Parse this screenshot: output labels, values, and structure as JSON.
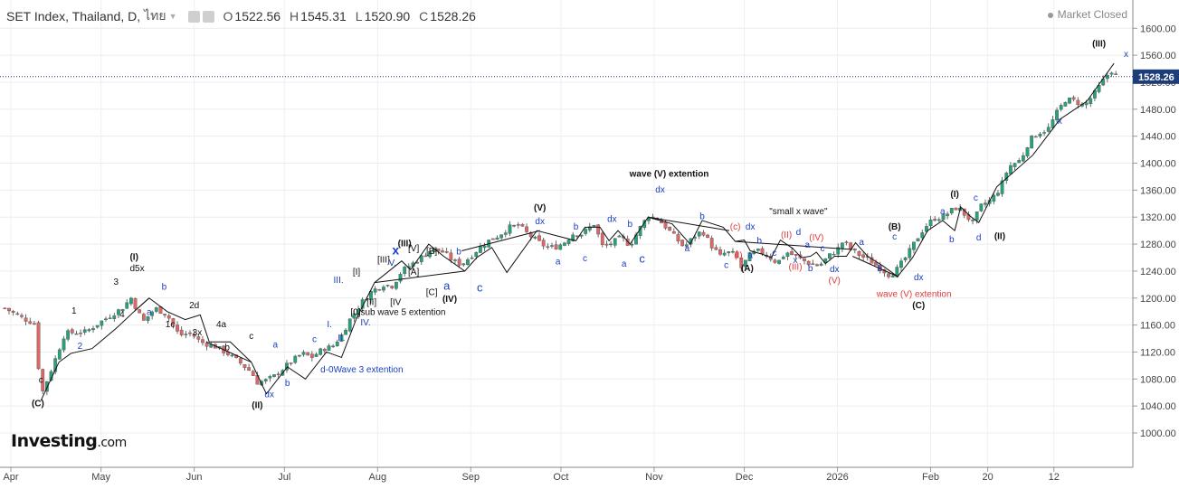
{
  "header": {
    "symbol": "SET Index, Thailand, D,",
    "language": "ไทย",
    "open_label": "O",
    "open": "1522.56",
    "high_label": "H",
    "high": "1545.31",
    "low_label": "L",
    "low": "1520.90",
    "close_label": "C",
    "close": "1528.26",
    "status": "Market Closed"
  },
  "logo": {
    "main": "Investing",
    "suffix": ".com"
  },
  "colors": {
    "up": "#26a17b",
    "down": "#e06666",
    "wave_blue": "#1a3fc4",
    "wave_red": "#e23b3b",
    "last_price_bg": "#1d3c7a"
  },
  "chart_data": {
    "type": "candlestick",
    "ylim": [
      960,
      1620
    ],
    "y_ticks": [
      1000,
      1040,
      1080,
      1120,
      1160,
      1200,
      1240,
      1280,
      1320,
      1360,
      1400,
      1440,
      1480,
      1520,
      1560,
      1600
    ],
    "x_months": [
      {
        "label": "Apr",
        "day": 0
      },
      {
        "label": "May",
        "day": 30
      },
      {
        "label": "Jun",
        "day": 61
      },
      {
        "label": "Jul",
        "day": 91
      },
      {
        "label": "Aug",
        "day": 122
      },
      {
        "label": "Sep",
        "day": 153
      },
      {
        "label": "Oct",
        "day": 183
      },
      {
        "label": "Nov",
        "day": 214
      },
      {
        "label": "Dec",
        "day": 244
      },
      {
        "label": "2026",
        "day": 275
      },
      {
        "label": "Feb",
        "day": 306
      },
      {
        "label": "20",
        "day": 325
      },
      {
        "label": "12",
        "day": 347
      }
    ],
    "last_price": "1528.26",
    "path": [
      [
        -2,
        1185
      ],
      [
        4,
        1170
      ],
      [
        8,
        1162
      ],
      [
        10,
        1055
      ],
      [
        14,
        1100
      ],
      [
        18,
        1148
      ],
      [
        25,
        1150
      ],
      [
        30,
        1165
      ],
      [
        37,
        1185
      ],
      [
        40,
        1200
      ],
      [
        44,
        1165
      ],
      [
        48,
        1185
      ],
      [
        52,
        1175
      ],
      [
        56,
        1145
      ],
      [
        60,
        1148
      ],
      [
        63,
        1135
      ],
      [
        68,
        1128
      ],
      [
        72,
        1118
      ],
      [
        76,
        1105
      ],
      [
        80,
        1090
      ],
      [
        82,
        1075
      ],
      [
        85,
        1078
      ],
      [
        88,
        1085
      ],
      [
        93,
        1105
      ],
      [
        97,
        1118
      ],
      [
        100,
        1112
      ],
      [
        104,
        1125
      ],
      [
        107,
        1128
      ],
      [
        110,
        1145
      ],
      [
        113,
        1170
      ],
      [
        117,
        1195
      ],
      [
        120,
        1210
      ],
      [
        124,
        1220
      ],
      [
        127,
        1218
      ],
      [
        130,
        1240
      ],
      [
        134,
        1252
      ],
      [
        137,
        1262
      ],
      [
        140,
        1272
      ],
      [
        144,
        1268
      ],
      [
        147,
        1255
      ],
      [
        150,
        1250
      ],
      [
        153,
        1262
      ],
      [
        156,
        1275
      ],
      [
        159,
        1285
      ],
      [
        162,
        1292
      ],
      [
        166,
        1305
      ],
      [
        169,
        1308
      ],
      [
        172,
        1295
      ],
      [
        175,
        1285
      ],
      [
        178,
        1276
      ],
      [
        181,
        1275
      ],
      [
        184,
        1282
      ],
      [
        187,
        1295
      ],
      [
        190,
        1295
      ],
      [
        194,
        1310
      ],
      [
        197,
        1275
      ],
      [
        200,
        1282
      ],
      [
        203,
        1290
      ],
      [
        206,
        1278
      ],
      [
        209,
        1302
      ],
      [
        212,
        1322
      ],
      [
        215,
        1318
      ],
      [
        218,
        1305
      ],
      [
        221,
        1290
      ],
      [
        224,
        1275
      ],
      [
        227,
        1290
      ],
      [
        230,
        1300
      ],
      [
        233,
        1278
      ],
      [
        236,
        1262
      ],
      [
        238,
        1268
      ],
      [
        241,
        1265
      ],
      [
        243,
        1245
      ],
      [
        246,
        1265
      ],
      [
        249,
        1270
      ],
      [
        252,
        1262
      ],
      [
        255,
        1252
      ],
      [
        258,
        1268
      ],
      [
        261,
        1262
      ],
      [
        264,
        1255
      ],
      [
        266,
        1250
      ],
      [
        269,
        1248
      ],
      [
        272,
        1262
      ],
      [
        275,
        1272
      ],
      [
        277,
        1285
      ],
      [
        280,
        1270
      ],
      [
        283,
        1262
      ],
      [
        286,
        1255
      ],
      [
        289,
        1245
      ],
      [
        292,
        1235
      ],
      [
        294,
        1238
      ],
      [
        298,
        1262
      ],
      [
        301,
        1285
      ],
      [
        304,
        1305
      ],
      [
        307,
        1318
      ],
      [
        310,
        1320
      ],
      [
        313,
        1330
      ],
      [
        315,
        1335
      ],
      [
        317,
        1325
      ],
      [
        320,
        1312
      ],
      [
        323,
        1338
      ],
      [
        326,
        1345
      ],
      [
        329,
        1362
      ],
      [
        332,
        1395
      ],
      [
        336,
        1405
      ],
      [
        339,
        1435
      ],
      [
        342,
        1445
      ],
      [
        345,
        1450
      ],
      [
        348,
        1475
      ],
      [
        351,
        1495
      ],
      [
        354,
        1492
      ],
      [
        357,
        1485
      ],
      [
        360,
        1500
      ],
      [
        363,
        1520
      ],
      [
        366,
        1538
      ],
      [
        368,
        1528
      ]
    ],
    "wave_lines": [
      [
        [
          10,
          1048
        ],
        [
          16,
          1105
        ],
        [
          20,
          1118
        ],
        [
          27,
          1125
        ],
        [
          35,
          1155
        ],
        [
          41,
          1180
        ],
        [
          46,
          1200
        ],
        [
          52,
          1180
        ],
        [
          58,
          1168
        ],
        [
          63,
          1175
        ],
        [
          66,
          1135
        ],
        [
          73,
          1135
        ],
        [
          80,
          1105
        ],
        [
          85,
          1058
        ],
        [
          92,
          1098
        ],
        [
          98,
          1080
        ],
        [
          105,
          1120
        ],
        [
          110,
          1112
        ],
        [
          115,
          1170
        ],
        [
          121,
          1223
        ],
        [
          130,
          1255
        ],
        [
          133,
          1242
        ],
        [
          139,
          1280
        ],
        [
          144,
          1262
        ],
        [
          151,
          1240
        ],
        [
          155,
          1260
        ],
        [
          160,
          1275
        ],
        [
          165,
          1238
        ],
        [
          175,
          1300
        ],
        [
          188,
          1285
        ],
        [
          191,
          1305
        ],
        [
          196,
          1305
        ],
        [
          199,
          1285
        ],
        [
          202,
          1300
        ],
        [
          206,
          1280
        ],
        [
          212,
          1320
        ],
        [
          220,
          1310
        ],
        [
          226,
          1280
        ],
        [
          230,
          1315
        ],
        [
          237,
          1305
        ],
        [
          241,
          1284
        ],
        [
          244,
          1286
        ],
        [
          246,
          1270
        ],
        [
          250,
          1265
        ],
        [
          253,
          1260
        ],
        [
          256,
          1286
        ],
        [
          260,
          1274
        ],
        [
          263,
          1260
        ],
        [
          266,
          1262
        ],
        [
          268,
          1268
        ],
        [
          271,
          1251
        ],
        [
          274,
          1262
        ],
        [
          278,
          1262
        ],
        [
          281,
          1282
        ],
        [
          285,
          1262
        ],
        [
          290,
          1248
        ],
        [
          295,
          1232
        ],
        [
          300,
          1260
        ],
        [
          305,
          1300
        ],
        [
          310,
          1315
        ],
        [
          314,
          1300
        ],
        [
          316,
          1335
        ],
        [
          319,
          1322
        ],
        [
          322,
          1312
        ],
        [
          328,
          1365
        ],
        [
          340,
          1412
        ],
        [
          349,
          1465
        ],
        [
          358,
          1492
        ],
        [
          367,
          1548
        ]
      ],
      [
        [
          41,
          1180
        ],
        [
          46,
          1200
        ]
      ],
      [
        [
          65,
          1135
        ],
        [
          80,
          1105
        ]
      ],
      [
        [
          121,
          1223
        ],
        [
          151,
          1240
        ]
      ],
      [
        [
          150,
          1270
        ],
        [
          176,
          1300
        ]
      ],
      [
        [
          212,
          1320
        ],
        [
          239,
          1300
        ]
      ],
      [
        [
          241,
          1284
        ],
        [
          280,
          1272
        ]
      ],
      [
        [
          280,
          1262
        ],
        [
          295,
          1232
        ]
      ]
    ],
    "labels": [
      {
        "t": "(C)",
        "day": 9,
        "v": 1045,
        "c": "k",
        "b": true
      },
      {
        "t": "c",
        "day": 10,
        "v": 1080,
        "c": "k"
      },
      {
        "t": "1",
        "day": 21,
        "v": 1182,
        "c": "k"
      },
      {
        "t": "2",
        "day": 23,
        "v": 1130,
        "c": "b"
      },
      {
        "t": "3",
        "day": 35,
        "v": 1225,
        "c": "k"
      },
      {
        "t": "4",
        "day": 37,
        "v": 1177,
        "c": "k"
      },
      {
        "t": "(I)",
        "day": 41,
        "v": 1262,
        "c": "k",
        "b": true
      },
      {
        "t": "d5x",
        "day": 42,
        "v": 1245,
        "c": "k"
      },
      {
        "t": "b",
        "day": 51,
        "v": 1218,
        "c": "b"
      },
      {
        "t": "a",
        "day": 46,
        "v": 1180,
        "c": "b"
      },
      {
        "t": "1c",
        "day": 53,
        "v": 1162,
        "c": "k"
      },
      {
        "t": "2d",
        "day": 61,
        "v": 1190,
        "c": "k"
      },
      {
        "t": "3x",
        "day": 62,
        "v": 1150,
        "c": "k"
      },
      {
        "t": "4a",
        "day": 70,
        "v": 1162,
        "c": "k"
      },
      {
        "t": "b",
        "day": 72,
        "v": 1128,
        "c": "k"
      },
      {
        "t": "c",
        "day": 80,
        "v": 1145,
        "c": "k"
      },
      {
        "t": "dx",
        "day": 86,
        "v": 1058,
        "c": "b"
      },
      {
        "t": "(II)",
        "day": 82,
        "v": 1042,
        "c": "k",
        "b": true
      },
      {
        "t": "a",
        "day": 88,
        "v": 1132,
        "c": "b"
      },
      {
        "t": "b",
        "day": 92,
        "v": 1075,
        "c": "b"
      },
      {
        "t": "c",
        "day": 101,
        "v": 1140,
        "c": "b"
      },
      {
        "t": "d-0Wave 3 extention",
        "day": 103,
        "v": 1095,
        "c": "b",
        "a": "start"
      },
      {
        "t": "I.",
        "day": 106,
        "v": 1162,
        "c": "b"
      },
      {
        "t": "II.",
        "day": 110,
        "v": 1142,
        "c": "b"
      },
      {
        "t": "III.",
        "day": 109,
        "v": 1228,
        "c": "b"
      },
      {
        "t": "IV.",
        "day": 118,
        "v": 1165,
        "c": "b"
      },
      {
        "t": "[I]",
        "day": 115,
        "v": 1240,
        "c": "k"
      },
      {
        "t": "[II]",
        "day": 120,
        "v": 1195,
        "c": "k"
      },
      {
        "t": "[III]",
        "day": 124,
        "v": 1258,
        "c": "k"
      },
      {
        "t": "[IV",
        "day": 128,
        "v": 1195,
        "c": "k"
      },
      {
        "t": "[0]sub wave 5 extention",
        "day": 113,
        "v": 1180,
        "c": "k",
        "a": "start"
      },
      {
        "t": "x",
        "day": 128,
        "v": 1270,
        "c": "b",
        "b": true,
        "s": 14
      },
      {
        "t": "V.",
        "day": 127,
        "v": 1253,
        "c": "b"
      },
      {
        "t": "(III)",
        "day": 131,
        "v": 1282,
        "c": "k",
        "b": true
      },
      {
        "t": "[V]",
        "day": 134,
        "v": 1275,
        "c": "k"
      },
      {
        "t": "[A]",
        "day": 134,
        "v": 1240,
        "c": "k"
      },
      {
        "t": "[B]",
        "day": 140,
        "v": 1271,
        "c": "k"
      },
      {
        "t": "[C]",
        "day": 140,
        "v": 1210,
        "c": "k"
      },
      {
        "t": "a",
        "day": 145,
        "v": 1218,
        "c": "b",
        "s": 13
      },
      {
        "t": "(IV)",
        "day": 146,
        "v": 1200,
        "c": "k",
        "b": true
      },
      {
        "t": "b",
        "day": 149,
        "v": 1270,
        "c": "b"
      },
      {
        "t": "c",
        "day": 156,
        "v": 1215,
        "c": "b",
        "s": 13
      },
      {
        "t": "(V)",
        "day": 176,
        "v": 1335,
        "c": "k",
        "b": true
      },
      {
        "t": "dx",
        "day": 176,
        "v": 1315,
        "c": "b"
      },
      {
        "t": "b",
        "day": 188,
        "v": 1307,
        "c": "b"
      },
      {
        "t": "a",
        "day": 182,
        "v": 1255,
        "c": "b"
      },
      {
        "t": "c",
        "day": 191,
        "v": 1260,
        "c": "b"
      },
      {
        "t": "dx",
        "day": 200,
        "v": 1318,
        "c": "b"
      },
      {
        "t": "b",
        "day": 206,
        "v": 1311,
        "c": "b"
      },
      {
        "t": "a",
        "day": 204,
        "v": 1252,
        "c": "b"
      },
      {
        "t": "c",
        "day": 210,
        "v": 1258,
        "c": "b",
        "s": 13
      },
      {
        "t": "wave (V) extention",
        "day": 219,
        "v": 1385,
        "c": "k",
        "b": true
      },
      {
        "t": "dx",
        "day": 216,
        "v": 1362,
        "c": "b"
      },
      {
        "t": "b",
        "day": 230,
        "v": 1322,
        "c": "b"
      },
      {
        "t": "a",
        "day": 225,
        "v": 1275,
        "c": "b"
      },
      {
        "t": "c",
        "day": 238,
        "v": 1250,
        "c": "b"
      },
      {
        "t": "(c)",
        "day": 241,
        "v": 1307,
        "c": "r"
      },
      {
        "t": "dx",
        "day": 246,
        "v": 1307,
        "c": "b"
      },
      {
        "t": "(I)",
        "day": 242,
        "v": 1265,
        "c": "r"
      },
      {
        "t": "a",
        "day": 246,
        "v": 1265,
        "c": "b"
      },
      {
        "t": "(A)",
        "day": 245,
        "v": 1245,
        "c": "k",
        "b": true
      },
      {
        "t": "\"small x wave\"",
        "day": 262,
        "v": 1330,
        "c": "k"
      },
      {
        "t": "b",
        "day": 249,
        "v": 1286,
        "c": "b"
      },
      {
        "t": "c",
        "day": 254,
        "v": 1268,
        "c": "b"
      },
      {
        "t": "(II)",
        "day": 258,
        "v": 1295,
        "c": "r"
      },
      {
        "t": "d",
        "day": 262,
        "v": 1299,
        "c": "b"
      },
      {
        "t": "(IV)",
        "day": 268,
        "v": 1291,
        "c": "r"
      },
      {
        "t": "a",
        "day": 265,
        "v": 1280,
        "c": "b"
      },
      {
        "t": "c",
        "day": 270,
        "v": 1275,
        "c": "b"
      },
      {
        "t": "x",
        "day": 261,
        "v": 1257,
        "c": "b"
      },
      {
        "t": "(III)",
        "day": 261,
        "v": 1247,
        "c": "r"
      },
      {
        "t": "b",
        "day": 266,
        "v": 1245,
        "c": "b"
      },
      {
        "t": "dx",
        "day": 274,
        "v": 1244,
        "c": "b"
      },
      {
        "t": "(V)",
        "day": 274,
        "v": 1227,
        "c": "r"
      },
      {
        "t": "a",
        "day": 283,
        "v": 1284,
        "c": "b"
      },
      {
        "t": "b",
        "day": 289,
        "v": 1245,
        "c": "b"
      },
      {
        "t": "(B)",
        "day": 294,
        "v": 1307,
        "c": "k",
        "b": true
      },
      {
        "t": "c",
        "day": 294,
        "v": 1292,
        "c": "b"
      },
      {
        "t": "wave (V) extention",
        "day": 288,
        "v": 1207,
        "c": "r",
        "a": "start"
      },
      {
        "t": "dx",
        "day": 302,
        "v": 1232,
        "c": "b"
      },
      {
        "t": "(C)",
        "day": 302,
        "v": 1190,
        "c": "k",
        "b": true
      },
      {
        "t": "(I)",
        "day": 314,
        "v": 1355,
        "c": "k",
        "b": true
      },
      {
        "t": "a",
        "day": 310,
        "v": 1330,
        "c": "b"
      },
      {
        "t": "c",
        "day": 321,
        "v": 1350,
        "c": "b"
      },
      {
        "t": "b",
        "day": 313,
        "v": 1288,
        "c": "b"
      },
      {
        "t": "d",
        "day": 322,
        "v": 1291,
        "c": "b"
      },
      {
        "t": "(II)",
        "day": 329,
        "v": 1293,
        "c": "k",
        "b": true
      },
      {
        "t": "x",
        "day": 349,
        "v": 1464,
        "c": "b"
      },
      {
        "t": "(III)",
        "day": 362,
        "v": 1578,
        "c": "k",
        "b": true
      },
      {
        "t": "x",
        "day": 371,
        "v": 1563,
        "c": "b"
      }
    ]
  }
}
